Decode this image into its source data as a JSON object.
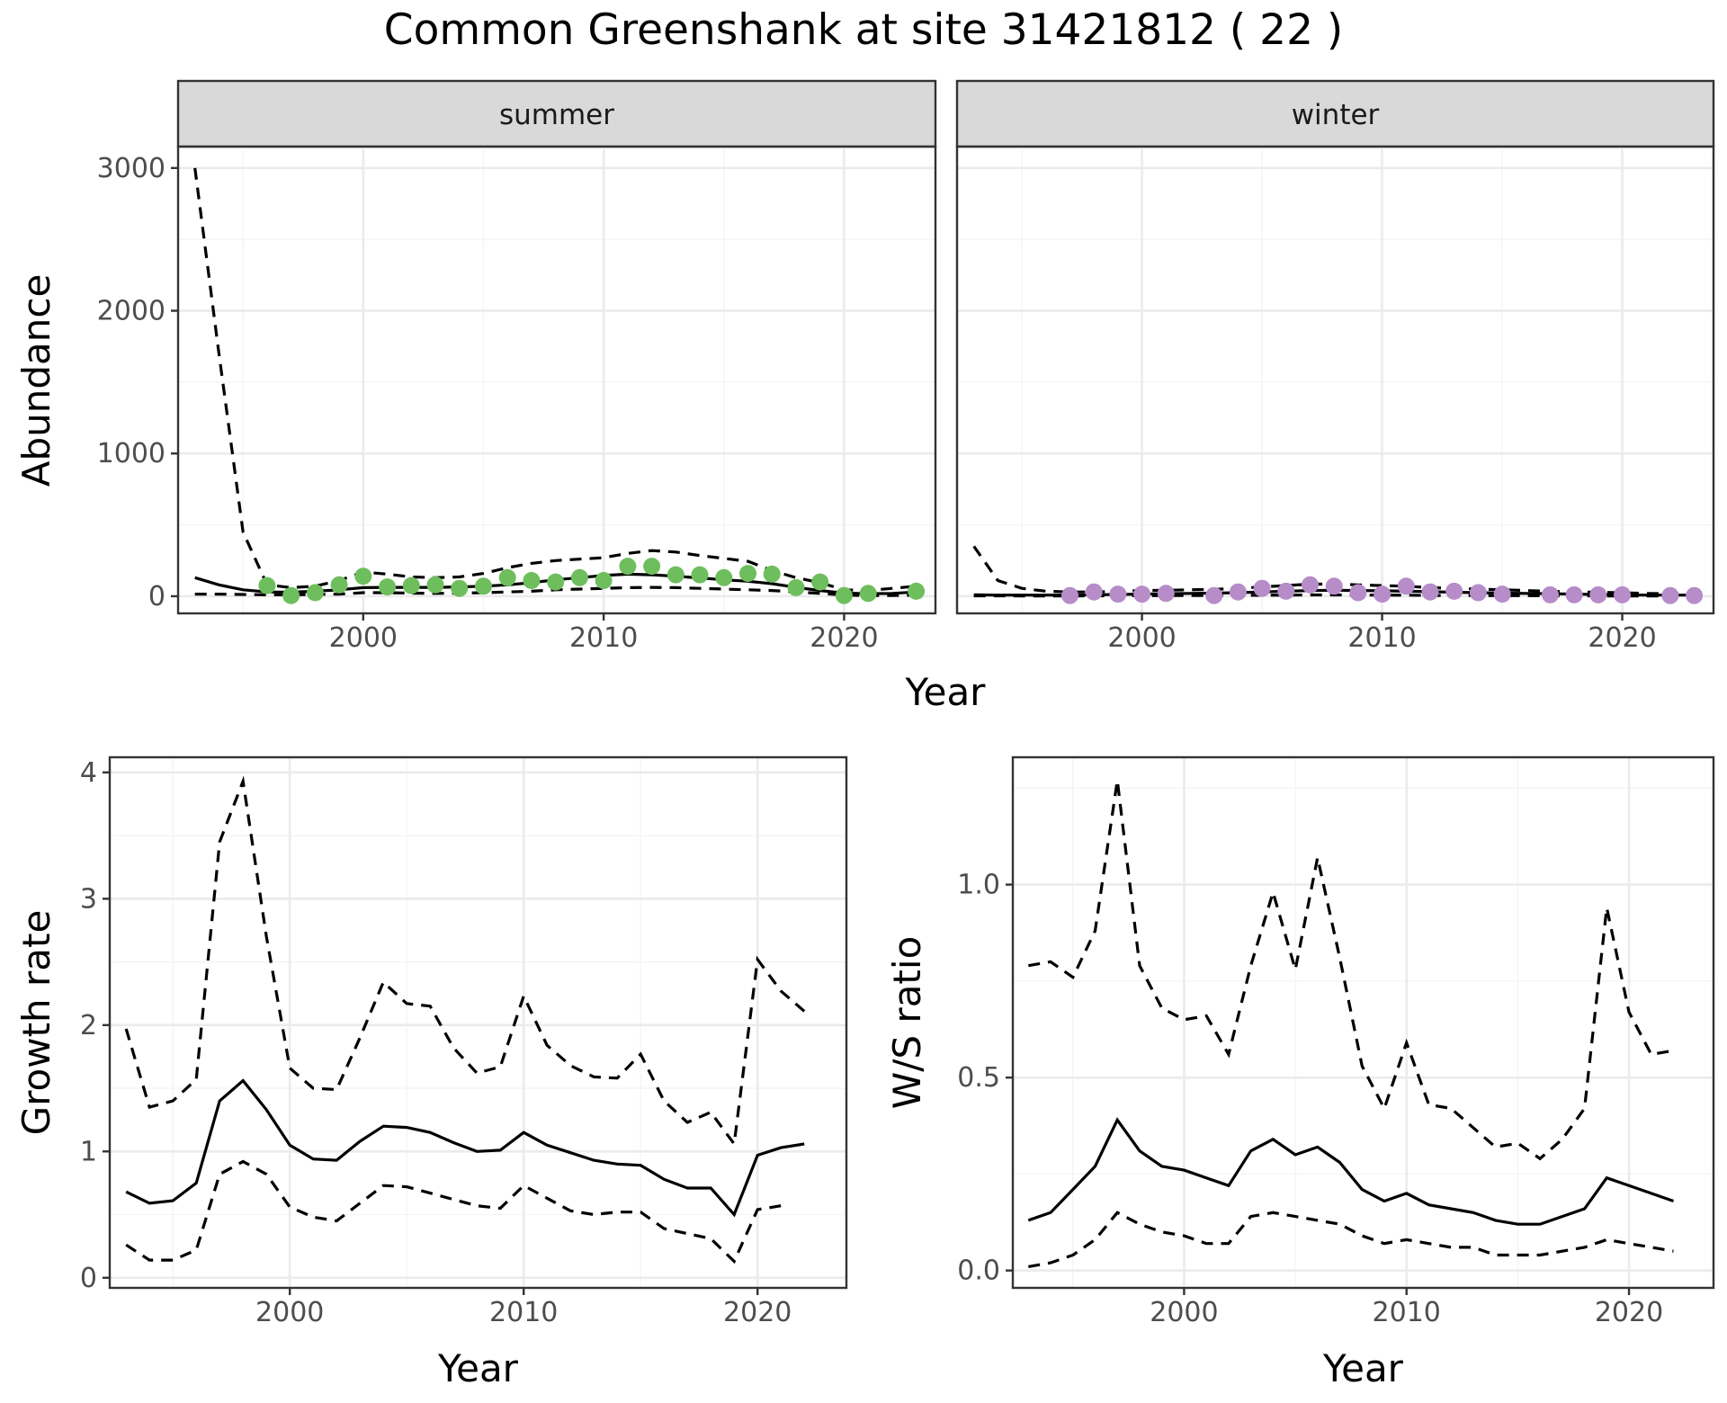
{
  "title": "Common Greenshank at site 31421812 ( 22 )",
  "colors": {
    "summer_points": "#6ebe5d",
    "winter_points": "#b68cc9"
  },
  "chart_data": [
    {
      "id": "abundance",
      "type": "line",
      "facets": [
        "summer",
        "winter"
      ],
      "xlabel": "Year",
      "ylabel": "Abundance",
      "xlim": [
        1992.3,
        2023.8
      ],
      "ylim": [
        -120,
        3150
      ],
      "xticks": [
        2000,
        2010,
        2020
      ],
      "yticks": [
        0,
        1000,
        2000,
        3000
      ],
      "panels": [
        {
          "name": "summer",
          "x": [
            1993,
            1994,
            1995,
            1996,
            1997,
            1998,
            1999,
            2000,
            2001,
            2002,
            2003,
            2004,
            2005,
            2006,
            2007,
            2008,
            2009,
            2010,
            2011,
            2012,
            2013,
            2014,
            2015,
            2016,
            2017,
            2018,
            2019,
            2020,
            2021,
            2022,
            2023
          ],
          "fit": [
            130,
            80,
            45,
            30,
            28,
            35,
            45,
            60,
            62,
            62,
            62,
            65,
            70,
            80,
            95,
            115,
            130,
            145,
            155,
            150,
            140,
            128,
            115,
            105,
            88,
            62,
            40,
            22,
            18,
            20,
            30
          ],
          "upper": [
            3000,
            1700,
            450,
            80,
            60,
            70,
            110,
            170,
            155,
            135,
            130,
            135,
            160,
            200,
            230,
            250,
            260,
            270,
            300,
            320,
            310,
            285,
            265,
            245,
            180,
            130,
            95,
            45,
            40,
            55,
            70
          ],
          "lower": [
            15,
            15,
            12,
            10,
            10,
            12,
            15,
            25,
            25,
            22,
            20,
            22,
            25,
            30,
            35,
            45,
            50,
            55,
            60,
            62,
            60,
            55,
            50,
            45,
            40,
            30,
            20,
            8,
            5,
            5,
            8
          ],
          "points_x": [
            1996,
            1997,
            1998,
            1999,
            2000,
            2001,
            2002,
            2003,
            2004,
            2005,
            2006,
            2007,
            2008,
            2009,
            2010,
            2011,
            2012,
            2013,
            2014,
            2015,
            2016,
            2017,
            2018,
            2019,
            2020,
            2021,
            2023
          ],
          "points_y": [
            75,
            5,
            25,
            80,
            140,
            65,
            75,
            80,
            55,
            70,
            130,
            110,
            100,
            130,
            110,
            210,
            210,
            150,
            150,
            130,
            160,
            155,
            60,
            100,
            5,
            20,
            35
          ]
        },
        {
          "name": "winter",
          "x": [
            1993,
            1994,
            1995,
            1996,
            1997,
            1998,
            1999,
            2000,
            2001,
            2002,
            2003,
            2004,
            2005,
            2006,
            2007,
            2008,
            2009,
            2010,
            2011,
            2012,
            2013,
            2014,
            2015,
            2016,
            2017,
            2018,
            2019,
            2020,
            2021,
            2022,
            2023
          ],
          "fit": [
            10,
            8,
            8,
            8,
            8,
            10,
            12,
            15,
            18,
            20,
            22,
            25,
            30,
            35,
            40,
            42,
            40,
            38,
            35,
            32,
            28,
            25,
            22,
            20,
            18,
            15,
            12,
            10,
            8,
            8,
            8
          ],
          "upper": [
            350,
            110,
            55,
            35,
            30,
            30,
            35,
            40,
            42,
            45,
            48,
            55,
            65,
            75,
            85,
            85,
            80,
            75,
            70,
            60,
            55,
            50,
            45,
            40,
            35,
            30,
            28,
            25,
            20,
            18,
            18
          ],
          "lower": [
            3,
            3,
            2,
            2,
            2,
            3,
            3,
            4,
            5,
            5,
            5,
            6,
            7,
            8,
            9,
            9,
            8,
            8,
            7,
            6,
            5,
            5,
            4,
            4,
            3,
            3,
            2,
            2,
            2,
            2,
            2
          ],
          "points_x": [
            1997,
            1998,
            1999,
            2000,
            2001,
            2003,
            2004,
            2005,
            2006,
            2007,
            2008,
            2009,
            2010,
            2011,
            2012,
            2013,
            2014,
            2015,
            2017,
            2018,
            2019,
            2020,
            2022,
            2023
          ],
          "points_y": [
            5,
            30,
            15,
            15,
            20,
            5,
            30,
            55,
            35,
            80,
            70,
            25,
            15,
            70,
            30,
            35,
            25,
            15,
            10,
            10,
            10,
            10,
            5,
            5
          ]
        }
      ]
    },
    {
      "id": "growth",
      "type": "line",
      "xlabel": "Year",
      "ylabel": "Growth rate",
      "xlim": [
        1992.3,
        2023.8
      ],
      "ylim": [
        -0.08,
        4.12
      ],
      "xticks": [
        2000,
        2010,
        2020
      ],
      "yticks": [
        0,
        1,
        2,
        3,
        4
      ],
      "x": [
        1993,
        1994,
        1995,
        1996,
        1997,
        1998,
        1999,
        2000,
        2001,
        2002,
        2003,
        2004,
        2005,
        2006,
        2007,
        2008,
        2009,
        2010,
        2011,
        2012,
        2013,
        2014,
        2015,
        2016,
        2017,
        2018,
        2019,
        2020,
        2021,
        2022
      ],
      "fit": [
        0.68,
        0.59,
        0.61,
        0.75,
        1.4,
        1.56,
        1.33,
        1.05,
        0.94,
        0.93,
        1.08,
        1.2,
        1.19,
        1.15,
        1.07,
        1.0,
        1.01,
        1.15,
        1.05,
        0.99,
        0.93,
        0.9,
        0.89,
        0.78,
        0.71,
        0.71,
        0.5,
        0.97,
        1.03,
        1.06
      ],
      "upper": [
        1.97,
        1.35,
        1.4,
        1.57,
        3.45,
        3.93,
        2.7,
        1.66,
        1.5,
        1.49,
        1.9,
        2.34,
        2.17,
        2.15,
        1.82,
        1.62,
        1.67,
        2.23,
        1.84,
        1.68,
        1.59,
        1.58,
        1.77,
        1.4,
        1.23,
        1.31,
        1.06,
        2.52,
        2.27,
        2.11
      ],
      "lower": [
        0.26,
        0.14,
        0.14,
        0.22,
        0.82,
        0.92,
        0.82,
        0.56,
        0.48,
        0.45,
        0.59,
        0.73,
        0.72,
        0.67,
        0.62,
        0.57,
        0.55,
        0.73,
        0.63,
        0.53,
        0.5,
        0.52,
        0.52,
        0.39,
        0.35,
        0.31,
        0.13,
        0.54,
        0.57,
        null
      ]
    },
    {
      "id": "ratio",
      "type": "line",
      "xlabel": "Year",
      "ylabel": "W/S ratio",
      "xlim": [
        1992.3,
        2023.8
      ],
      "ylim": [
        -0.045,
        1.33
      ],
      "xticks": [
        2000,
        2010,
        2020
      ],
      "yticks": [
        0.0,
        0.5,
        1.0
      ],
      "ytick_labels": [
        "0.0",
        "0.5",
        "1.0"
      ],
      "x": [
        1993,
        1994,
        1995,
        1996,
        1997,
        1998,
        1999,
        2000,
        2001,
        2002,
        2003,
        2004,
        2005,
        2006,
        2007,
        2008,
        2009,
        2010,
        2011,
        2012,
        2013,
        2014,
        2015,
        2016,
        2017,
        2018,
        2019,
        2020,
        2021,
        2022
      ],
      "fit": [
        0.13,
        0.15,
        0.21,
        0.27,
        0.39,
        0.31,
        0.27,
        0.26,
        0.24,
        0.22,
        0.31,
        0.34,
        0.3,
        0.32,
        0.28,
        0.21,
        0.18,
        0.2,
        0.17,
        0.16,
        0.15,
        0.13,
        0.12,
        0.12,
        0.14,
        0.16,
        0.24,
        0.22,
        0.2,
        0.18
      ],
      "upper": [
        0.79,
        0.8,
        0.76,
        0.88,
        1.27,
        0.79,
        0.68,
        0.65,
        0.66,
        0.56,
        0.79,
        0.98,
        0.78,
        1.07,
        0.81,
        0.53,
        0.42,
        0.59,
        0.43,
        0.42,
        0.37,
        0.32,
        0.33,
        0.29,
        0.34,
        0.42,
        0.94,
        0.67,
        0.56,
        0.57
      ],
      "lower": [
        0.01,
        0.02,
        0.04,
        0.08,
        0.15,
        0.12,
        0.1,
        0.09,
        0.07,
        0.07,
        0.14,
        0.15,
        0.14,
        0.13,
        0.12,
        0.09,
        0.07,
        0.08,
        0.07,
        0.06,
        0.06,
        0.04,
        0.04,
        0.04,
        0.05,
        0.06,
        0.08,
        0.07,
        0.06,
        0.05
      ]
    }
  ]
}
